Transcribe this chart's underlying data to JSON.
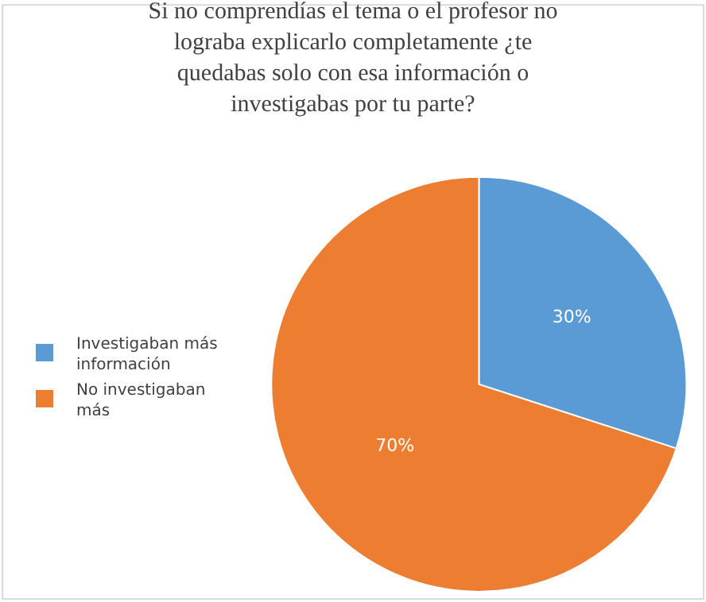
{
  "chart_data": {
    "type": "pie",
    "title": "Si no comprendías el tema o el profesor no\nlograba explicarlo completamente ¿te\nquedabas solo con esa información o\ninvestigabas por tu parte?",
    "categories": [
      "Investigaban más información",
      "No investigaban más"
    ],
    "values": [
      30,
      70
    ],
    "colors": [
      "#5b9bd5",
      "#ed7d31"
    ],
    "value_labels": [
      "30%",
      "70%"
    ],
    "legend": "left"
  }
}
